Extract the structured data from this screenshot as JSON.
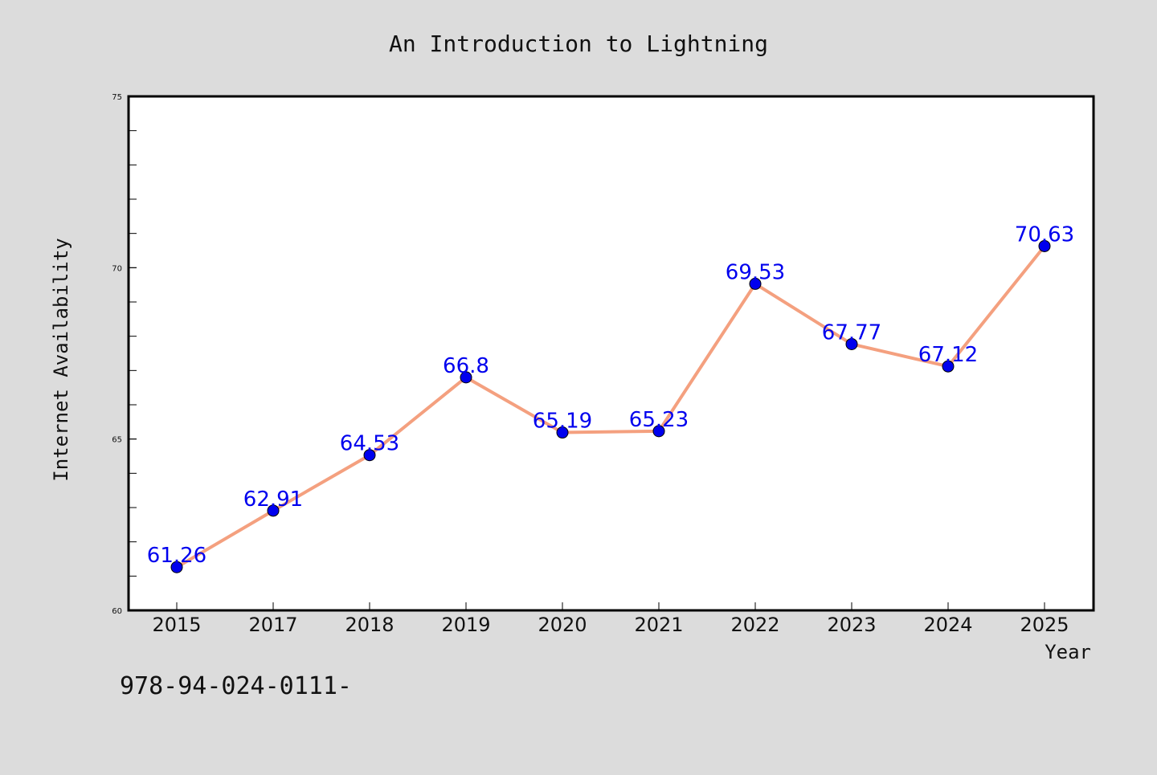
{
  "chart_data": {
    "type": "line",
    "title": "An Introduction to Lightning",
    "xlabel": "Year",
    "ylabel": "Internet Availability",
    "categories": [
      "2015",
      "2017",
      "2018",
      "2019",
      "2020",
      "2021",
      "2022",
      "2023",
      "2024",
      "2025"
    ],
    "series": [
      {
        "values": [
          61.26,
          62.91,
          64.53,
          66.8,
          65.19,
          65.23,
          69.53,
          67.77,
          67.12,
          70.63
        ],
        "labels": [
          "61.26",
          "62.91",
          "64.53",
          "66.8",
          "65.19",
          "65.23",
          "69.53",
          "67.77",
          "67.12",
          "70.63"
        ]
      }
    ],
    "ylim": [
      60,
      75
    ],
    "yticks": [
      60,
      65,
      70,
      75
    ],
    "ytick_labels": [
      "60",
      "65",
      "70",
      "75"
    ],
    "grid": false,
    "legend": "none"
  },
  "footer_text": "978-94-024-0111-",
  "colors": {
    "background": "#dcdcdc",
    "plot_background": "#ffffff",
    "line": "#f4a07f",
    "marker": "#0000ee",
    "data_label": "#0000ee",
    "axes": "#000000"
  }
}
